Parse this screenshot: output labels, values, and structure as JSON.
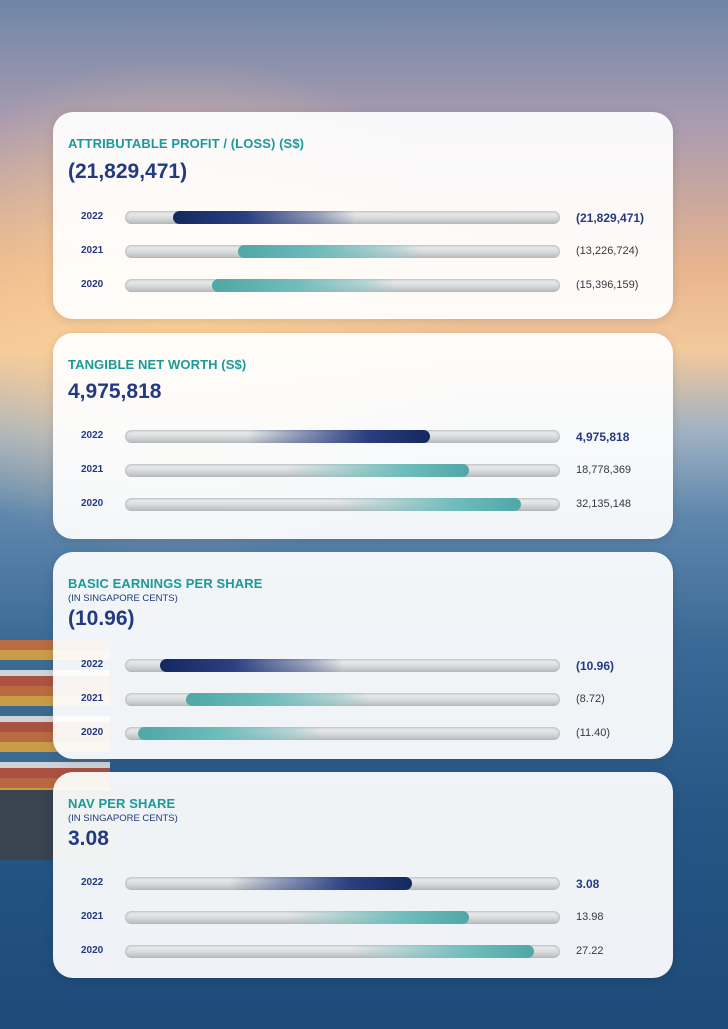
{
  "chart_data": [
    {
      "type": "bar",
      "title": "ATTRIBUTABLE PROFIT / (LOSS) (S$)",
      "subtitle": "",
      "headline": "(21,829,471)",
      "categories": [
        "2022",
        "2021",
        "2020"
      ],
      "values": [
        -21829471,
        -13226724,
        -15396159
      ],
      "labels": [
        "(21,829,471)",
        "(13,226,724)",
        "(15,396,159)"
      ],
      "bar_colors": [
        "#1f3578",
        "#5fb3b2",
        "#5fb3b2"
      ],
      "fill_direction": "leftward",
      "fill_fraction": [
        0.89,
        0.74,
        0.8
      ]
    },
    {
      "type": "bar",
      "title": "TANGIBLE NET WORTH (S$)",
      "subtitle": "",
      "headline": "4,975,818",
      "categories": [
        "2022",
        "2021",
        "2020"
      ],
      "values": [
        4975818,
        18778369,
        32135148
      ],
      "labels": [
        "4,975,818",
        "18,778,369",
        "32,135,148"
      ],
      "bar_colors": [
        "#1f3578",
        "#5fb3b2",
        "#5fb3b2"
      ],
      "fill_direction": "rightward",
      "fill_fraction": [
        0.7,
        0.79,
        0.91
      ]
    },
    {
      "type": "bar",
      "title": "BASIC EARNINGS PER SHARE",
      "subtitle": "(IN SINGAPORE CENTS)",
      "headline": "(10.96)",
      "categories": [
        "2022",
        "2021",
        "2020"
      ],
      "values": [
        -10.96,
        -8.72,
        -11.4
      ],
      "labels": [
        "(10.96)",
        "(8.72)",
        "(11.40)"
      ],
      "bar_colors": [
        "#1f3578",
        "#5fb3b2",
        "#5fb3b2"
      ],
      "fill_direction": "leftward",
      "fill_fraction": [
        0.92,
        0.86,
        0.97
      ]
    },
    {
      "type": "bar",
      "title": "NAV PER SHARE",
      "subtitle": "(IN SINGAPORE CENTS)",
      "headline": "3.08",
      "categories": [
        "2022",
        "2021",
        "2020"
      ],
      "values": [
        3.08,
        13.98,
        27.22
      ],
      "labels": [
        "3.08",
        "13.98",
        "27.22"
      ],
      "bar_colors": [
        "#1f3578",
        "#5fb3b2",
        "#5fb3b2"
      ],
      "fill_direction": "rightward",
      "fill_fraction": [
        0.66,
        0.79,
        0.94
      ]
    }
  ]
}
